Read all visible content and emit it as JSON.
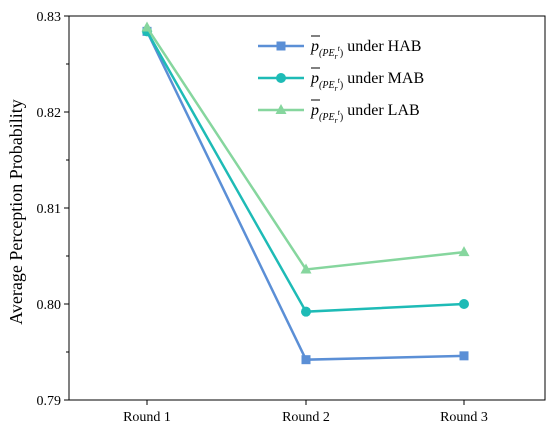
{
  "chart_data": {
    "type": "line",
    "title": "",
    "xlabel": "",
    "ylabel": "Average Perception Probability",
    "categories": [
      "Round 1",
      "Round 2",
      "Round 3"
    ],
    "ylim": [
      0.79,
      0.83
    ],
    "yticks": [
      "0.79",
      "0.80",
      "0.81",
      "0.82",
      "0.83"
    ],
    "grid": false,
    "legend_position": "top-right",
    "series": [
      {
        "name_prefix": "p",
        "name_subscript": "(PE",
        "name_sub_sub": "r",
        "name_sup": "t",
        "name_close": ")",
        "name_suffix": " under HAB",
        "values": [
          0.8284,
          0.7942,
          0.7946
        ],
        "color": "#5B8FD6",
        "marker": "square"
      },
      {
        "name_prefix": "p",
        "name_subscript": "(PE",
        "name_sub_sub": "r",
        "name_sup": "t",
        "name_close": ")",
        "name_suffix": " under MAB",
        "values": [
          0.8284,
          0.7992,
          0.8
        ],
        "color": "#1EBBB6",
        "marker": "circle"
      },
      {
        "name_prefix": "p",
        "name_subscript": "(PE",
        "name_sub_sub": "r",
        "name_sup": "t",
        "name_close": ")",
        "name_suffix": " under LAB",
        "values": [
          0.8288,
          0.8036,
          0.8054
        ],
        "color": "#86D69E",
        "marker": "triangle"
      }
    ]
  }
}
